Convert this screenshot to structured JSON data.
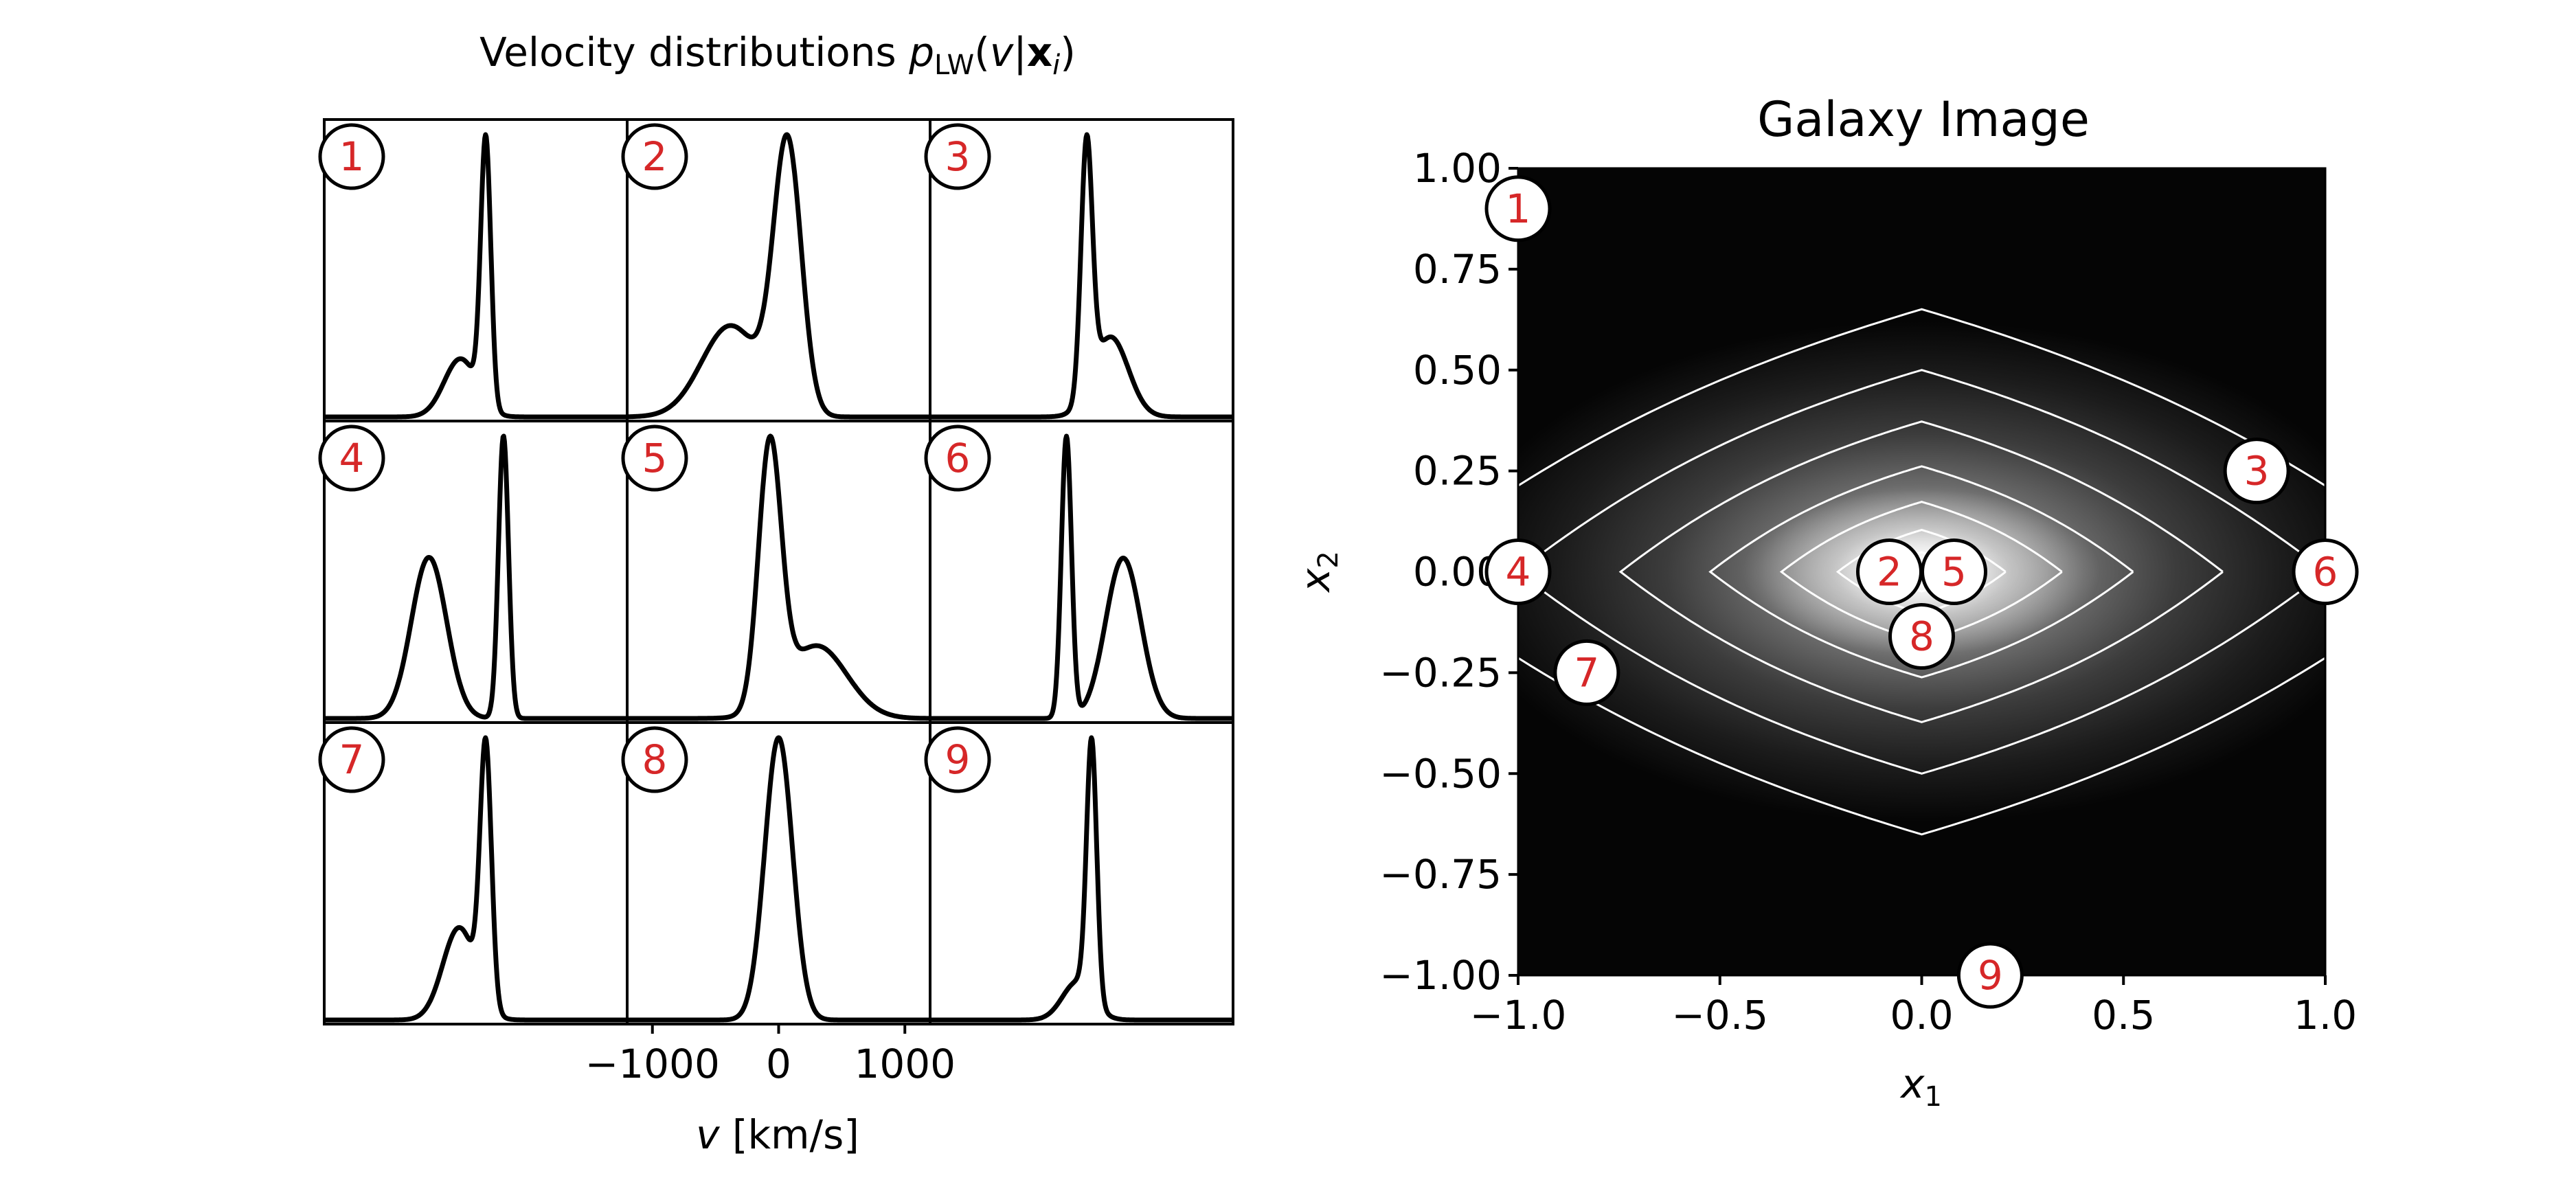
{
  "left_panel": {
    "title_prefix": "Velocity distributions ",
    "title_p": "p",
    "title_sub": "LW",
    "title_open": "(",
    "title_v": "v",
    "title_bar": "|",
    "title_x": "x",
    "title_i": "i",
    "title_close": ")",
    "xlabel_v": "v",
    "xlabel_unit": " [km/s]",
    "xticks": [
      "−1000",
      "0",
      "1000"
    ],
    "xtick_values": [
      -1000,
      0,
      1000
    ],
    "panel_labels": [
      "1",
      "2",
      "3",
      "4",
      "5",
      "6",
      "7",
      "8",
      "9"
    ]
  },
  "right_panel": {
    "title": "Galaxy Image",
    "xlabel_x": "x",
    "xlabel_sub": "1",
    "ylabel_x": "x",
    "ylabel_sub": "2",
    "xticks": [
      "−1.0",
      "−0.5",
      "0.0",
      "0.5",
      "1.0"
    ],
    "yticks": [
      "1.00",
      "0.75",
      "0.50",
      "0.25",
      "0.00",
      "−0.25",
      "−0.50",
      "−0.75",
      "−1.00"
    ]
  },
  "colors": {
    "marker_text": "#d62728",
    "line": "#000000",
    "contour": "#ffffff"
  },
  "chart_data": [
    {
      "type": "line",
      "name": "velocity-distributions",
      "xlabel": "v [km/s]",
      "xlim": [
        -1200,
        1200
      ],
      "panels": [
        {
          "id": "1",
          "components": [
            {
              "mu": 80,
              "sigma": 40,
              "amp": 1.0
            },
            {
              "mu": -120,
              "sigma": 130,
              "amp": 0.22
            }
          ]
        },
        {
          "id": "2",
          "components": [
            {
              "mu": 70,
              "sigma": 110,
              "amp": 1.0
            },
            {
              "mu": -380,
              "sigma": 230,
              "amp": 0.34
            }
          ]
        },
        {
          "id": "3",
          "components": [
            {
              "mu": 40,
              "sigma": 45,
              "amp": 1.0
            },
            {
              "mu": 230,
              "sigma": 140,
              "amp": 0.32
            }
          ]
        },
        {
          "id": "4",
          "components": [
            {
              "mu": 220,
              "sigma": 40,
              "amp": 1.0
            },
            {
              "mu": -370,
              "sigma": 140,
              "amp": 0.57
            }
          ]
        },
        {
          "id": "5",
          "components": [
            {
              "mu": -70,
              "sigma": 90,
              "amp": 1.0
            },
            {
              "mu": 300,
              "sigma": 240,
              "amp": 0.28
            }
          ]
        },
        {
          "id": "6",
          "components": [
            {
              "mu": -120,
              "sigma": 40,
              "amp": 1.0
            },
            {
              "mu": 330,
              "sigma": 140,
              "amp": 0.57
            }
          ]
        },
        {
          "id": "7",
          "components": [
            {
              "mu": 80,
              "sigma": 45,
              "amp": 1.0
            },
            {
              "mu": -130,
              "sigma": 130,
              "amp": 0.36
            }
          ]
        },
        {
          "id": "8",
          "components": [
            {
              "mu": 0,
              "sigma": 110,
              "amp": 1.0
            }
          ]
        },
        {
          "id": "9",
          "components": [
            {
              "mu": 80,
              "sigma": 40,
              "amp": 1.0
            },
            {
              "mu": -30,
              "sigma": 120,
              "amp": 0.15
            }
          ]
        }
      ]
    },
    {
      "type": "heatmap",
      "name": "galaxy-image",
      "title": "Galaxy Image",
      "xlabel": "x1",
      "ylabel": "x2",
      "xlim": [
        -1.0,
        1.0
      ],
      "ylim": [
        -1.0,
        1.0
      ],
      "colormap": "gray",
      "contour_levels": [
        0.05,
        0.1,
        0.18,
        0.3,
        0.45,
        0.62,
        0.8
      ],
      "markers": [
        {
          "label": "1",
          "x": -1.0,
          "y": 0.9
        },
        {
          "label": "2",
          "x": -0.08,
          "y": 0.0
        },
        {
          "label": "3",
          "x": 0.83,
          "y": 0.25
        },
        {
          "label": "4",
          "x": -1.0,
          "y": 0.0
        },
        {
          "label": "5",
          "x": 0.08,
          "y": 0.0
        },
        {
          "label": "6",
          "x": 1.0,
          "y": 0.0
        },
        {
          "label": "7",
          "x": -0.83,
          "y": -0.25
        },
        {
          "label": "8",
          "x": 0.0,
          "y": -0.16
        },
        {
          "label": "9",
          "x": 0.17,
          "y": -1.0
        }
      ]
    }
  ]
}
